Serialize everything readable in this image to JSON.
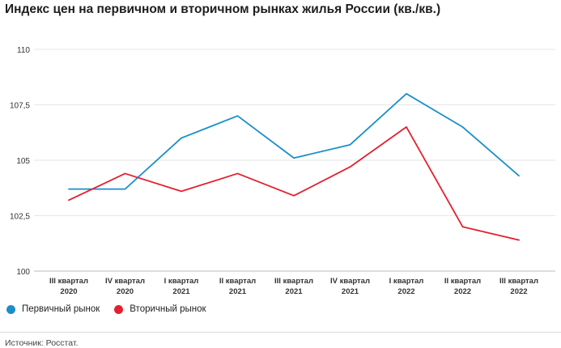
{
  "header": {
    "title": "Индекс цен на первичном и вторичном рынках жилья России (кв./кв.)"
  },
  "chart_data": {
    "type": "line",
    "title": "Индекс цен на первичном и вторичном рынках жилья России (кв./кв.)",
    "categories": [
      [
        "III квартал",
        "2020"
      ],
      [
        "IV квартал",
        "2020"
      ],
      [
        "I квартал",
        "2021"
      ],
      [
        "II квартал",
        "2021"
      ],
      [
        "III квартал",
        "2021"
      ],
      [
        "IV квартал",
        "2021"
      ],
      [
        "I квартал",
        "2022"
      ],
      [
        "II квартал",
        "2022"
      ],
      [
        "III квартал",
        "2022"
      ]
    ],
    "yticks": [
      "110",
      "107,5",
      "105",
      "102,5",
      "100"
    ],
    "ylim": [
      100,
      110
    ],
    "grid": "horizontal",
    "legend_position": "bottom-left",
    "series": [
      {
        "name": "Первичный рынок",
        "color": "#1b8ec9",
        "values": [
          103.7,
          103.7,
          106.0,
          107.0,
          105.1,
          105.7,
          108.0,
          106.5,
          104.3
        ]
      },
      {
        "name": "Вторичный рынок",
        "color": "#e3202f",
        "values": [
          103.2,
          104.4,
          103.6,
          104.4,
          103.4,
          104.7,
          106.5,
          102.0,
          101.4
        ]
      }
    ]
  },
  "footer": {
    "source": "Источник: Росстат."
  }
}
